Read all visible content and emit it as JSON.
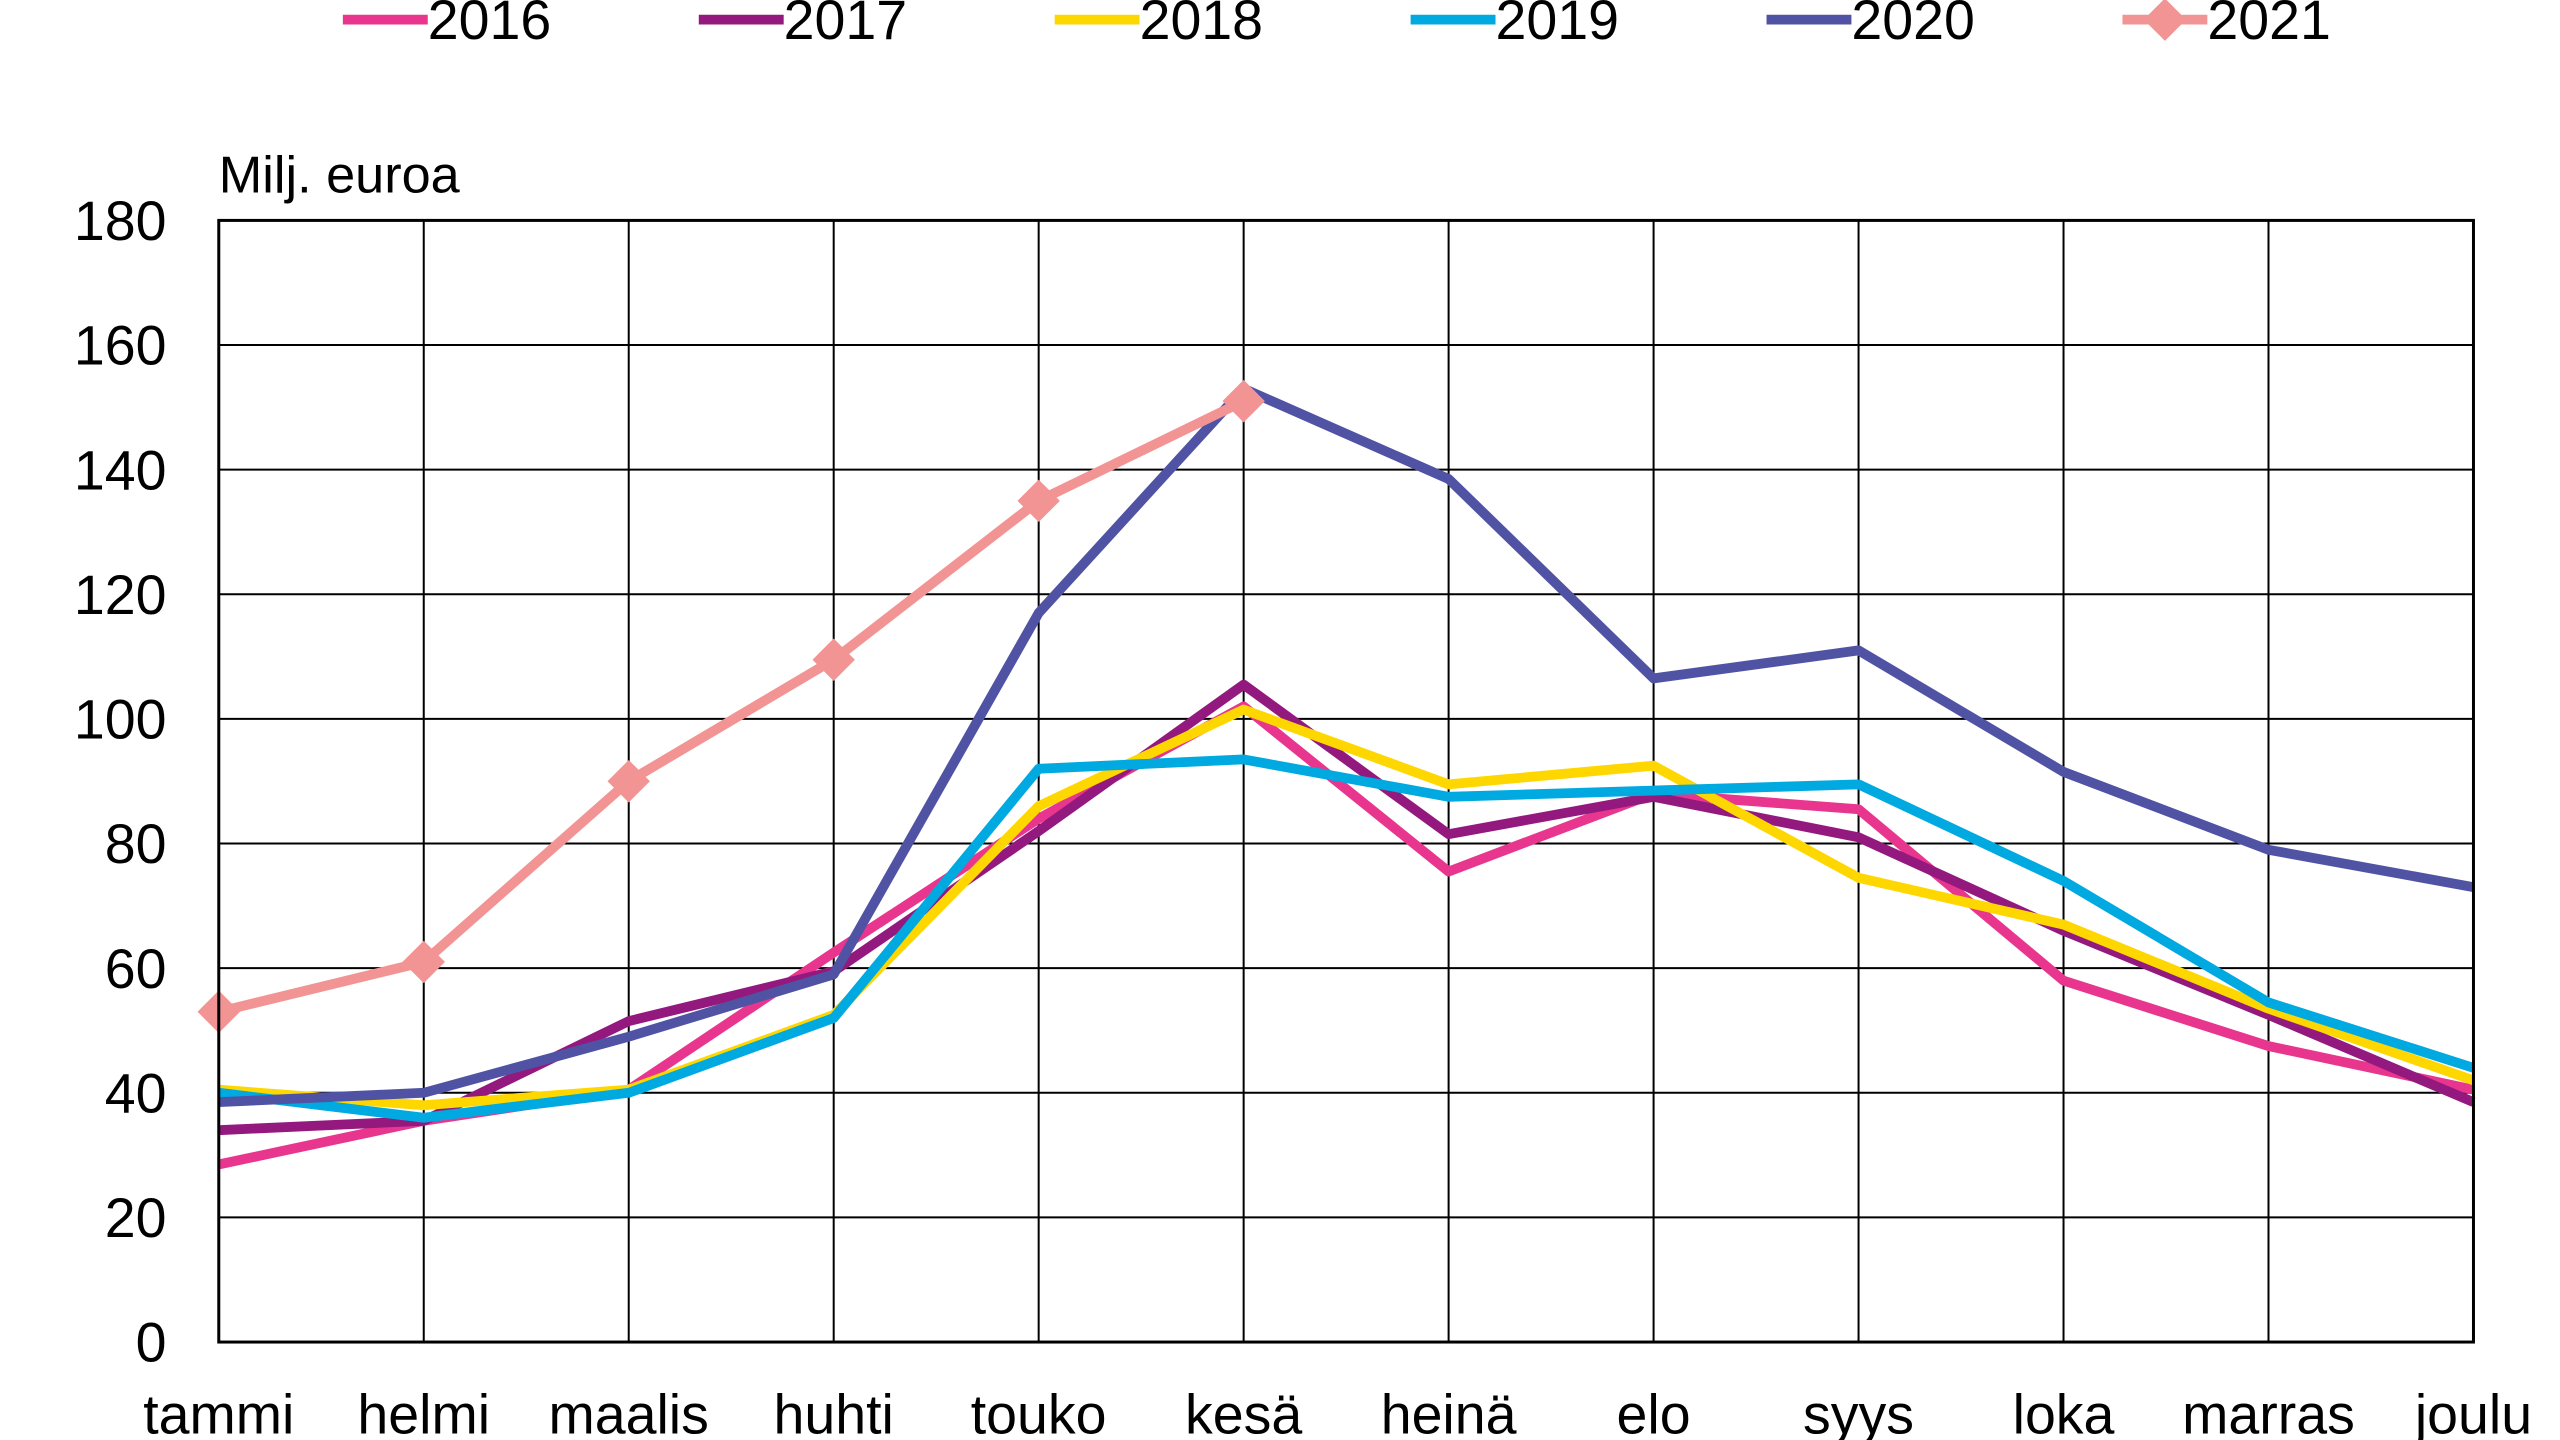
{
  "chart_data": {
    "type": "line",
    "title": "",
    "xlabel": "",
    "ylabel": "Milj. euroa",
    "ylim": [
      0,
      180
    ],
    "y_ticks": [
      0,
      20,
      40,
      60,
      80,
      100,
      120,
      140,
      160,
      180
    ],
    "grid": true,
    "legend_position": "top",
    "categories": [
      "tammi",
      "helmi",
      "maalis",
      "huhti",
      "touko",
      "kesä",
      "heinä",
      "elo",
      "syys",
      "loka",
      "marras",
      "joulu"
    ],
    "series": [
      {
        "name": "2016",
        "color": "#E8368F",
        "marker": "none",
        "values": [
          28.5,
          35.5,
          40.5,
          62.5,
          84,
          102,
          75.5,
          88,
          85.5,
          58,
          47.5,
          40.5
        ]
      },
      {
        "name": "2017",
        "color": "#93197F",
        "marker": "none",
        "values": [
          34,
          35.5,
          51.5,
          59.5,
          82,
          105.5,
          81.5,
          87.5,
          81,
          66,
          52.5,
          38.5
        ]
      },
      {
        "name": "2018",
        "color": "#FFD700",
        "marker": "none",
        "values": [
          40.5,
          38,
          40.5,
          52.5,
          86,
          101.5,
          89.5,
          92.5,
          74.5,
          67,
          53.5,
          42
        ]
      },
      {
        "name": "2019",
        "color": "#00A9E0",
        "marker": "none",
        "values": [
          40,
          36,
          40,
          52,
          92,
          93.5,
          87.5,
          88.5,
          89.5,
          74,
          54.5,
          44
        ]
      },
      {
        "name": "2020",
        "color": "#5053A3",
        "marker": "none",
        "values": [
          38.5,
          40,
          49,
          59,
          117,
          153,
          138.5,
          106.5,
          111,
          91.5,
          79,
          73
        ]
      },
      {
        "name": "2021",
        "color": "#F29494",
        "marker": "diamond",
        "values": [
          53,
          61,
          90,
          109.5,
          135,
          151,
          null,
          null,
          null,
          null,
          null,
          null
        ]
      }
    ]
  }
}
